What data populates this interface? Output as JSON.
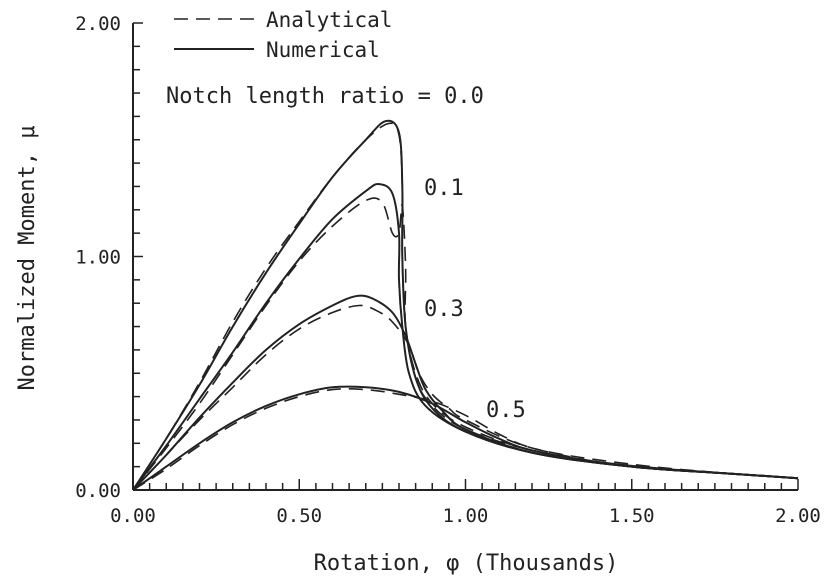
{
  "chart_data": {
    "type": "line",
    "title": "",
    "xlabel": "Rotation, φ (Thousands)",
    "ylabel": "Normalized Moment, μ",
    "xlim": [
      0,
      2.0
    ],
    "ylim": [
      0,
      2.0
    ],
    "x_ticks": [
      "0.00",
      "0.50",
      "1.00",
      "1.50",
      "2.00"
    ],
    "y_ticks": [
      "0.00",
      "1.00",
      "2.00"
    ],
    "grid": false,
    "legend": {
      "placement": "top-left",
      "entries": [
        {
          "label": "Analytical",
          "style": "dashed"
        },
        {
          "label": "Numerical",
          "style": "solid"
        }
      ]
    },
    "annotations": [
      {
        "text": "Notch length ratio = 0.0",
        "x": 0.16,
        "y": 1.71
      },
      {
        "text": "0.1",
        "x": 0.86,
        "y": 1.3
      },
      {
        "text": "0.3",
        "x": 0.86,
        "y": 0.78
      },
      {
        "text": "0.5",
        "x": 1.06,
        "y": 0.34
      }
    ],
    "series": [
      {
        "group": "0.0",
        "style": "solid",
        "points": [
          [
            0,
            0
          ],
          [
            0.1,
            0.22
          ],
          [
            0.2,
            0.45
          ],
          [
            0.3,
            0.7
          ],
          [
            0.4,
            0.93
          ],
          [
            0.5,
            1.14
          ],
          [
            0.6,
            1.34
          ],
          [
            0.7,
            1.5
          ],
          [
            0.76,
            1.58
          ],
          [
            0.8,
            1.53
          ],
          [
            0.81,
            1.3
          ],
          [
            0.81,
            1.0
          ],
          [
            0.82,
            0.7
          ],
          [
            0.85,
            0.48
          ],
          [
            0.9,
            0.35
          ],
          [
            1.0,
            0.25
          ],
          [
            1.2,
            0.16
          ],
          [
            1.5,
            0.1
          ],
          [
            1.8,
            0.07
          ],
          [
            2.0,
            0.05
          ]
        ]
      },
      {
        "group": "0.0",
        "style": "dashed",
        "points": [
          [
            0,
            0
          ],
          [
            0.1,
            0.22
          ],
          [
            0.2,
            0.46
          ],
          [
            0.3,
            0.72
          ],
          [
            0.4,
            0.95
          ],
          [
            0.5,
            1.15
          ],
          [
            0.6,
            1.34
          ],
          [
            0.7,
            1.5
          ],
          [
            0.77,
            1.57
          ],
          [
            0.8,
            1.52
          ],
          [
            0.81,
            1.3
          ],
          [
            0.81,
            1.0
          ],
          [
            0.82,
            0.7
          ],
          [
            0.85,
            0.48
          ],
          [
            0.9,
            0.36
          ],
          [
            1.0,
            0.26
          ],
          [
            1.2,
            0.17
          ],
          [
            1.5,
            0.1
          ],
          [
            1.8,
            0.07
          ],
          [
            2.0,
            0.05
          ]
        ]
      },
      {
        "group": "0.1",
        "style": "solid",
        "points": [
          [
            0,
            0
          ],
          [
            0.1,
            0.19
          ],
          [
            0.2,
            0.39
          ],
          [
            0.3,
            0.59
          ],
          [
            0.4,
            0.8
          ],
          [
            0.5,
            0.99
          ],
          [
            0.6,
            1.16
          ],
          [
            0.7,
            1.28
          ],
          [
            0.74,
            1.31
          ],
          [
            0.78,
            1.27
          ],
          [
            0.8,
            1.1
          ],
          [
            0.8,
            0.9
          ],
          [
            0.81,
            0.7
          ],
          [
            0.83,
            0.5
          ],
          [
            0.88,
            0.36
          ],
          [
            1.0,
            0.25
          ],
          [
            1.2,
            0.16
          ],
          [
            1.5,
            0.1
          ],
          [
            1.8,
            0.07
          ],
          [
            2.0,
            0.05
          ]
        ]
      },
      {
        "group": "0.1",
        "style": "dashed",
        "points": [
          [
            0,
            0
          ],
          [
            0.1,
            0.18
          ],
          [
            0.2,
            0.37
          ],
          [
            0.3,
            0.58
          ],
          [
            0.4,
            0.79
          ],
          [
            0.5,
            0.98
          ],
          [
            0.6,
            1.13
          ],
          [
            0.7,
            1.24
          ],
          [
            0.75,
            1.23
          ],
          [
            0.78,
            1.1
          ],
          [
            0.8,
            1.1
          ],
          [
            0.81,
            1.22
          ],
          [
            0.82,
            0.95
          ],
          [
            0.82,
            0.7
          ],
          [
            0.85,
            0.5
          ],
          [
            0.9,
            0.37
          ],
          [
            1.0,
            0.27
          ],
          [
            1.2,
            0.17
          ],
          [
            1.5,
            0.1
          ],
          [
            1.8,
            0.07
          ],
          [
            2.0,
            0.05
          ]
        ]
      },
      {
        "group": "0.3",
        "style": "solid",
        "points": [
          [
            0,
            0
          ],
          [
            0.1,
            0.15
          ],
          [
            0.2,
            0.31
          ],
          [
            0.3,
            0.46
          ],
          [
            0.4,
            0.6
          ],
          [
            0.5,
            0.71
          ],
          [
            0.6,
            0.79
          ],
          [
            0.67,
            0.83
          ],
          [
            0.72,
            0.82
          ],
          [
            0.78,
            0.76
          ],
          [
            0.82,
            0.66
          ],
          [
            0.85,
            0.54
          ],
          [
            0.88,
            0.43
          ],
          [
            0.93,
            0.34
          ],
          [
            1.0,
            0.26
          ],
          [
            1.2,
            0.16
          ],
          [
            1.5,
            0.1
          ],
          [
            1.8,
            0.07
          ],
          [
            2.0,
            0.05
          ]
        ]
      },
      {
        "group": "0.3",
        "style": "dashed",
        "points": [
          [
            0,
            0
          ],
          [
            0.1,
            0.15
          ],
          [
            0.2,
            0.3
          ],
          [
            0.3,
            0.44
          ],
          [
            0.4,
            0.58
          ],
          [
            0.5,
            0.69
          ],
          [
            0.6,
            0.76
          ],
          [
            0.68,
            0.79
          ],
          [
            0.73,
            0.77
          ],
          [
            0.78,
            0.72
          ],
          [
            0.83,
            0.62
          ],
          [
            0.86,
            0.5
          ],
          [
            0.9,
            0.41
          ],
          [
            0.95,
            0.35
          ],
          [
            1.0,
            0.3
          ],
          [
            1.2,
            0.18
          ],
          [
            1.5,
            0.11
          ],
          [
            1.8,
            0.07
          ],
          [
            2.0,
            0.05
          ]
        ]
      },
      {
        "group": "0.5",
        "style": "solid",
        "points": [
          [
            0,
            0
          ],
          [
            0.1,
            0.1
          ],
          [
            0.2,
            0.2
          ],
          [
            0.3,
            0.29
          ],
          [
            0.4,
            0.36
          ],
          [
            0.5,
            0.41
          ],
          [
            0.6,
            0.44
          ],
          [
            0.7,
            0.44
          ],
          [
            0.8,
            0.42
          ],
          [
            0.9,
            0.37
          ],
          [
            1.0,
            0.29
          ],
          [
            1.1,
            0.22
          ],
          [
            1.2,
            0.17
          ],
          [
            1.4,
            0.12
          ],
          [
            1.6,
            0.09
          ],
          [
            1.8,
            0.07
          ],
          [
            2.0,
            0.05
          ]
        ]
      },
      {
        "group": "0.5",
        "style": "dashed",
        "points": [
          [
            0,
            0
          ],
          [
            0.1,
            0.09
          ],
          [
            0.2,
            0.19
          ],
          [
            0.3,
            0.28
          ],
          [
            0.4,
            0.35
          ],
          [
            0.5,
            0.4
          ],
          [
            0.6,
            0.43
          ],
          [
            0.7,
            0.43
          ],
          [
            0.8,
            0.41
          ],
          [
            0.9,
            0.38
          ],
          [
            1.0,
            0.32
          ],
          [
            1.1,
            0.24
          ],
          [
            1.2,
            0.18
          ],
          [
            1.4,
            0.12
          ],
          [
            1.6,
            0.09
          ],
          [
            1.8,
            0.07
          ],
          [
            2.0,
            0.05
          ]
        ]
      }
    ]
  }
}
